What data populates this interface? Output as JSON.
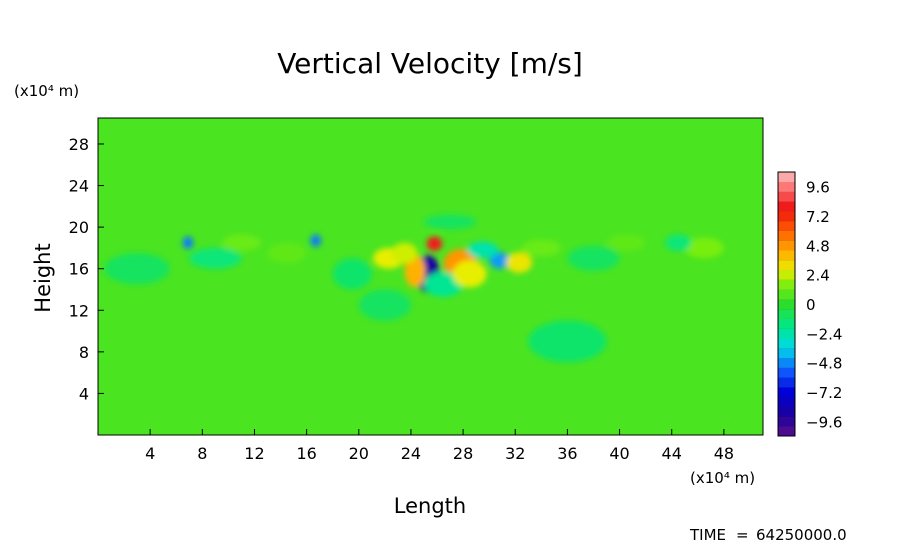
{
  "chart_data": {
    "type": "heatmap",
    "title": "Vertical Velocity [m/s]",
    "xlabel": "Length",
    "ylabel": "Height",
    "x_unit_label": "(x10⁴ m)",
    "y_unit_label": "(x10⁴ m)",
    "xlim": [
      0,
      51
    ],
    "ylim": [
      0,
      30.5
    ],
    "x_ticks": [
      "4",
      "8",
      "12",
      "16",
      "20",
      "24",
      "28",
      "32",
      "36",
      "40",
      "44",
      "48"
    ],
    "x_tick_values": [
      4,
      8,
      12,
      16,
      20,
      24,
      28,
      32,
      36,
      40,
      44,
      48
    ],
    "y_ticks": [
      "4",
      "8",
      "12",
      "16",
      "20",
      "24",
      "28"
    ],
    "y_tick_values": [
      4,
      8,
      12,
      16,
      20,
      24,
      28
    ],
    "background_value": 0.6,
    "features": [
      {
        "x": 25.3,
        "y": 15.5,
        "value": -9.0,
        "rx": 0.9,
        "ry": 1.8
      },
      {
        "x": 25.8,
        "y": 18.4,
        "value": 8.0,
        "rx": 0.6,
        "ry": 0.7
      },
      {
        "x": 27.8,
        "y": 16.5,
        "value": 4.8,
        "rx": 1.3,
        "ry": 1.4
      },
      {
        "x": 24.3,
        "y": 15.8,
        "value": 4.2,
        "rx": 0.8,
        "ry": 1.6
      },
      {
        "x": 30.8,
        "y": 16.8,
        "value": -4.5,
        "rx": 0.8,
        "ry": 0.8
      },
      {
        "x": 32.3,
        "y": 16.6,
        "value": 3.0,
        "rx": 1.0,
        "ry": 1.0
      },
      {
        "x": 29.5,
        "y": 17.8,
        "value": -2.5,
        "rx": 1.2,
        "ry": 0.8
      },
      {
        "x": 22.3,
        "y": 17.0,
        "value": 2.8,
        "rx": 1.2,
        "ry": 1.0
      },
      {
        "x": 23.5,
        "y": 17.5,
        "value": 2.5,
        "rx": 1.0,
        "ry": 1.0
      },
      {
        "x": 26.5,
        "y": 14.5,
        "value": -2.0,
        "rx": 1.5,
        "ry": 1.2
      },
      {
        "x": 28.5,
        "y": 15.5,
        "value": 2.8,
        "rx": 1.3,
        "ry": 1.3
      },
      {
        "x": 6.9,
        "y": 18.5,
        "value": -5.0,
        "rx": 0.4,
        "ry": 0.6
      },
      {
        "x": 16.7,
        "y": 18.7,
        "value": -5.0,
        "rx": 0.4,
        "ry": 0.6
      },
      {
        "x": 9.0,
        "y": 17.0,
        "value": -1.5,
        "rx": 2.0,
        "ry": 1.0
      },
      {
        "x": 36.0,
        "y": 9.0,
        "value": -1.2,
        "rx": 3.0,
        "ry": 2.0
      },
      {
        "x": 46.5,
        "y": 18.0,
        "value": 1.5,
        "rx": 1.5,
        "ry": 1.0
      },
      {
        "x": 44.5,
        "y": 18.5,
        "value": -1.5,
        "rx": 1.0,
        "ry": 0.8
      },
      {
        "x": 3.0,
        "y": 16.0,
        "value": -1.0,
        "rx": 2.5,
        "ry": 1.5
      },
      {
        "x": 11.0,
        "y": 18.5,
        "value": 1.2,
        "rx": 1.5,
        "ry": 0.8
      },
      {
        "x": 14.5,
        "y": 17.5,
        "value": 1.0,
        "rx": 1.5,
        "ry": 1.0
      },
      {
        "x": 19.5,
        "y": 15.5,
        "value": -1.2,
        "rx": 1.5,
        "ry": 1.5
      },
      {
        "x": 34.0,
        "y": 18.0,
        "value": 1.2,
        "rx": 1.5,
        "ry": 0.8
      },
      {
        "x": 38.0,
        "y": 17.0,
        "value": -1.0,
        "rx": 2.0,
        "ry": 1.2
      },
      {
        "x": 40.5,
        "y": 18.5,
        "value": 1.0,
        "rx": 1.5,
        "ry": 0.8
      },
      {
        "x": 27.0,
        "y": 20.5,
        "value": -1.0,
        "rx": 2.0,
        "ry": 0.7
      },
      {
        "x": 22.0,
        "y": 12.5,
        "value": -1.0,
        "rx": 2.0,
        "ry": 1.5
      }
    ],
    "colorbar": {
      "min": -10.8,
      "max": 10.8,
      "labels": [
        "9.6",
        "7.2",
        "4.8",
        "2.4",
        "0",
        "−2.4",
        "−4.8",
        "−7.2",
        "−9.6"
      ],
      "label_values": [
        9.6,
        7.2,
        4.8,
        2.4,
        0,
        -2.4,
        -4.8,
        -7.2,
        -9.6
      ],
      "color_stops": [
        {
          "v": -10.8,
          "c": "#5a0f8a"
        },
        {
          "v": -9.0,
          "c": "#1a00a0"
        },
        {
          "v": -7.2,
          "c": "#0000d8"
        },
        {
          "v": -5.4,
          "c": "#1060ff"
        },
        {
          "v": -3.6,
          "c": "#00d8e8"
        },
        {
          "v": -1.8,
          "c": "#00e888"
        },
        {
          "v": 0.0,
          "c": "#2cdd2c"
        },
        {
          "v": 1.5,
          "c": "#78ee10"
        },
        {
          "v": 2.8,
          "c": "#e8ee00"
        },
        {
          "v": 4.2,
          "c": "#ffb000"
        },
        {
          "v": 6.0,
          "c": "#ff6000"
        },
        {
          "v": 7.8,
          "c": "#ee1010"
        },
        {
          "v": 9.6,
          "c": "#ff7878"
        },
        {
          "v": 10.8,
          "c": "#f8c0c0"
        }
      ]
    }
  },
  "footer": {
    "time_label": "TIME",
    "time_sep": "=",
    "time_value": "64250000.0"
  }
}
